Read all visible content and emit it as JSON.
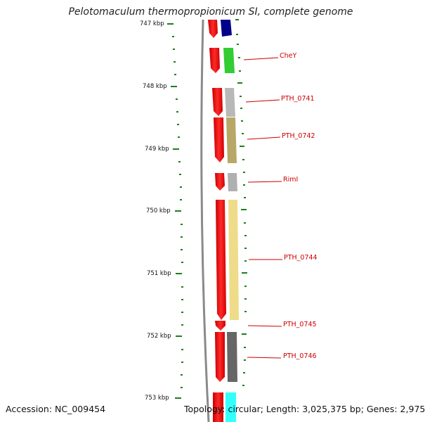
{
  "title": "Pelotomaculum thermopropionicum SI, complete genome",
  "accession": "Accession: NC_009454",
  "stats": "Topology: circular; Length: 3,025,375 bp; Genes: 2,975",
  "ticks": [
    "747 kbp",
    "748 kbp",
    "749 kbp",
    "750 kbp",
    "751 kbp",
    "752 kbp",
    "753 kbp"
  ],
  "genes": [
    "CheY",
    "PTH_0741",
    "PTH_0742",
    "RimI",
    "PTH_0744",
    "PTH_0745",
    "PTH_0746"
  ],
  "colors": {
    "backbone": "#888888",
    "forward": "#ff0000",
    "ticks": "#1f7a1f",
    "label": "#cc0000"
  }
}
